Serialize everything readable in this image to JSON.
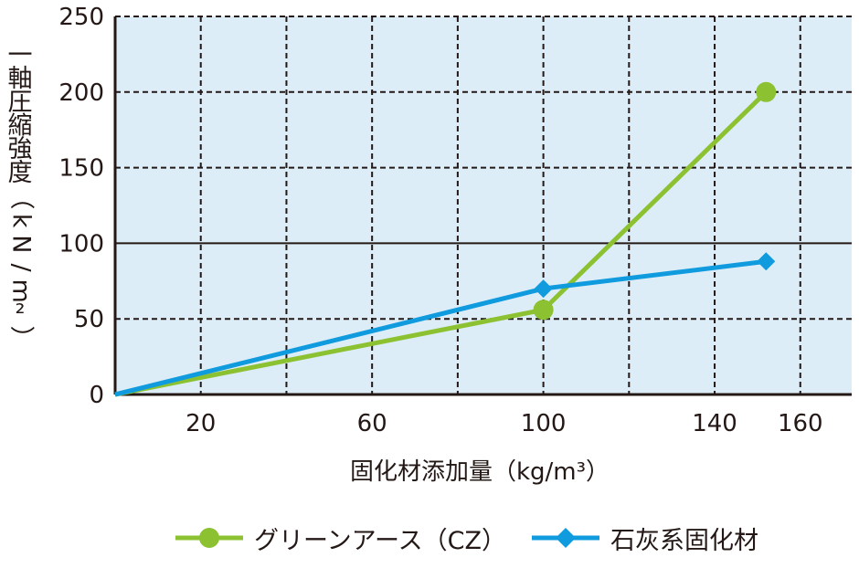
{
  "chart_data": {
    "type": "line",
    "xlabel": "固化材添加量（kg/m³）",
    "ylabel": "一軸圧縮強度（kN/m²）",
    "xlim": [
      0,
      172
    ],
    "ylim": [
      0,
      250
    ],
    "x_ticks": [
      20,
      60,
      100,
      140,
      160
    ],
    "y_ticks": [
      0,
      50,
      100,
      150,
      200,
      250
    ],
    "grid": true,
    "grid_style": "dashed",
    "reference_line_y": 100,
    "plot_background": "#dcedf7",
    "legend_position": "bottom",
    "series": [
      {
        "name": "グリーンアース（CZ）",
        "color": "#8cc232",
        "marker": "circle",
        "x": [
          0,
          100,
          152
        ],
        "y": [
          0,
          56,
          200
        ]
      },
      {
        "name": "石灰系固化材",
        "color": "#0f9bde",
        "marker": "diamond",
        "x": [
          0,
          100,
          152
        ],
        "y": [
          0,
          70,
          88
        ]
      }
    ]
  }
}
